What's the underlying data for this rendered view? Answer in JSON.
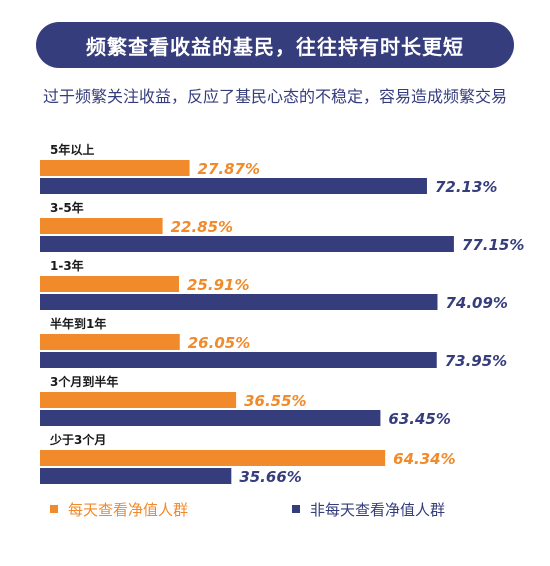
{
  "header": {
    "title": "频繁查看收益的基民，往往持有时长更短",
    "subtitle": "过于频繁关注收益，反应了基民心态的不稳定，容易造成频繁交易"
  },
  "colors": {
    "navy": "#363d7c",
    "orange": "#f08a2b"
  },
  "chart_data": {
    "type": "bar",
    "orientation": "horizontal",
    "title": "频繁查看收益的基民，往往持有时长更短",
    "xlim": [
      0,
      100
    ],
    "grid": false,
    "legend_position": "bottom",
    "categories": [
      "5年以上",
      "3-5年",
      "1-3年",
      "半年到1年",
      "3个月到半年",
      "少于3个月"
    ],
    "series": [
      {
        "name": "每天查看净值人群",
        "color": "#f08a2b",
        "values": [
          27.87,
          22.85,
          25.91,
          26.05,
          36.55,
          64.34
        ]
      },
      {
        "name": "非每天查看净值人群",
        "color": "#363d7c",
        "values": [
          72.13,
          77.15,
          74.09,
          73.95,
          63.45,
          35.66
        ]
      }
    ]
  }
}
